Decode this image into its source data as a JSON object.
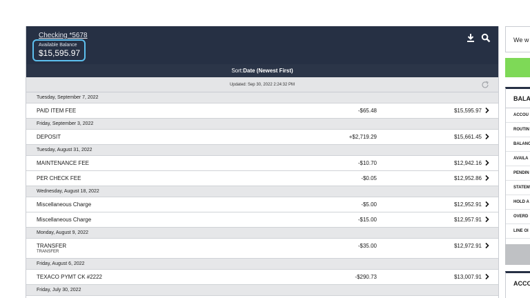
{
  "account": {
    "name": "Checking *5678",
    "balance_label": "Available Balance",
    "balance_value": "$15,595.97",
    "icons": [
      "download-icon",
      "search-icon"
    ]
  },
  "sort": {
    "label": "Sort:",
    "value": "Date (Newest First)"
  },
  "updated": "Updated: Sep 30, 2022 2:24:32 PM",
  "groups": [
    {
      "date": "Tuesday, September 7, 2022",
      "transactions": [
        {
          "desc": "PAID ITEM FEE",
          "amount": "-$65.48",
          "balance": "$15,595.97"
        }
      ]
    },
    {
      "date": "Friday, September 3, 2022",
      "transactions": [
        {
          "desc": "DEPOSIT",
          "amount": "+$2,719.29",
          "balance": "$15,661.45"
        }
      ]
    },
    {
      "date": "Tuesday, August 31, 2022",
      "transactions": [
        {
          "desc": "MAINTENANCE FEE",
          "amount": "-$10.70",
          "balance": "$12,942.16"
        },
        {
          "desc": "PER CHECK FEE",
          "amount": "-$0.05",
          "balance": "$12,952.86"
        }
      ]
    },
    {
      "date": "Wednesday, August 18, 2022",
      "transactions": [
        {
          "desc": "Miscellaneous Charge",
          "amount": "-$5.00",
          "balance": "$12,952.91"
        },
        {
          "desc": "Miscellaneous Charge",
          "amount": "-$15.00",
          "balance": "$12,957.91"
        }
      ]
    },
    {
      "date": "Monday, August 9, 2022",
      "transactions": [
        {
          "desc": "TRANSFER",
          "sub": "TRANSFER",
          "amount": "-$35.00",
          "balance": "$12,972.91"
        }
      ]
    },
    {
      "date": "Friday, August 6, 2022",
      "transactions": [
        {
          "desc": "TEXACO PYMT CK #2222",
          "amount": "-$290.73",
          "balance": "$13,007.91"
        }
      ]
    },
    {
      "date": "Friday, July 30, 2022",
      "transactions": []
    }
  ],
  "side": {
    "message": "We w",
    "panel_title": "BALA",
    "items": [
      "ACCOU",
      "ROUTIN",
      "BALANC",
      "AVAILA",
      "PENDIN",
      "STATEM",
      "HOLD A",
      "OVERD",
      "LINE OI"
    ],
    "panel2_title": "ACCO",
    "colors": {
      "green": "#7ed957",
      "navy": "#263044",
      "accent": "#5dc0ef"
    }
  }
}
